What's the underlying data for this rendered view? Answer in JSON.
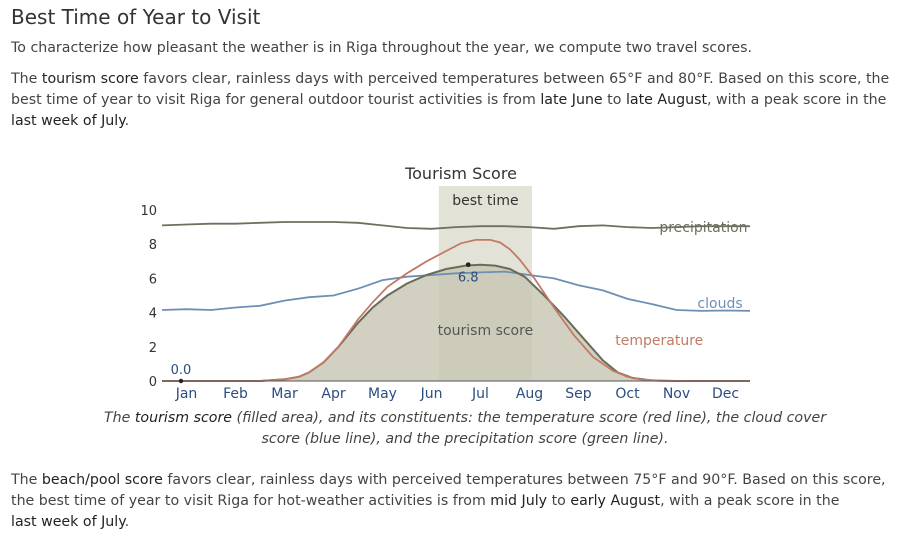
{
  "page": {
    "title": "Best Time of Year to Visit",
    "intro": "To characterize how pleasant the weather is in Riga throughout the year, we compute two travel scores.",
    "tourism_para": {
      "a": "The ",
      "b": "tourism score",
      "c": " favors clear, rainless days with perceived temperatures between 65°F and 80°F. Based on this score, the best time of year to visit Riga for general outdoor tourist activities is from ",
      "d": "late June",
      "e": " to ",
      "f": "late August",
      "g": ", with a peak score in the ",
      "h": "last week of July",
      "i": "."
    },
    "beach_para": {
      "a": "The ",
      "b": "beach/pool score",
      "c": " favors clear, rainless days with perceived temperatures between 75°F and 90°F. Based on this score, the best time of year to visit Riga for hot-weather activities is from ",
      "d": "mid July",
      "e": " to ",
      "f": "early August",
      "g": ", with a peak score in the ",
      "h": "last week of July",
      "i": "."
    },
    "caption": {
      "a": "The ",
      "b": "tourism score",
      "c": " (filled area), and its constituents: the temperature score (red line), the cloud cover score (blue line), and the precipitation score (green line)."
    }
  },
  "chart_data": {
    "type": "area",
    "title": "Tourism Score",
    "ylim": [
      0,
      10
    ],
    "yticks": [
      "0",
      "2",
      "4",
      "6",
      "8",
      "10"
    ],
    "xlim": [
      0,
      12
    ],
    "months": [
      "Jan",
      "Feb",
      "Mar",
      "Apr",
      "May",
      "Jun",
      "Jul",
      "Aug",
      "Sep",
      "Oct",
      "Nov",
      "Dec"
    ],
    "grid": false,
    "best_time": {
      "label": "best time",
      "start": 5.65,
      "end": 7.55
    },
    "min_label": {
      "text": "0.0",
      "x": 0.0,
      "y": 0.0
    },
    "max_label": {
      "text": "6.8",
      "x": 6.25,
      "y": 6.8
    },
    "series": [
      {
        "name": "tourism score",
        "color": "#6b6b5a",
        "fill": "#c9c8b6",
        "x": [
          0,
          1,
          2,
          2.5,
          2.8,
          3.0,
          3.3,
          3.6,
          4.0,
          4.3,
          4.6,
          5.0,
          5.4,
          5.8,
          6.2,
          6.5,
          6.8,
          7.1,
          7.4,
          7.8,
          8.2,
          8.6,
          9.0,
          9.3,
          9.6,
          10.0,
          10.5,
          11,
          12
        ],
        "y": [
          0,
          0,
          0,
          0.1,
          0.25,
          0.5,
          1.1,
          2.0,
          3.4,
          4.3,
          5.0,
          5.7,
          6.2,
          6.55,
          6.75,
          6.8,
          6.75,
          6.55,
          6.1,
          5.0,
          3.8,
          2.5,
          1.2,
          0.5,
          0.18,
          0.03,
          0,
          0,
          0
        ]
      },
      {
        "name": "temperature",
        "color": "#c17a66",
        "x": [
          0,
          1,
          2,
          2.5,
          2.8,
          3.0,
          3.3,
          3.6,
          4.0,
          4.3,
          4.6,
          5.0,
          5.4,
          5.8,
          6.1,
          6.4,
          6.7,
          6.9,
          7.1,
          7.3,
          7.6,
          8.0,
          8.4,
          8.8,
          9.2,
          9.5,
          9.8,
          10.2,
          11,
          12
        ],
        "y": [
          0,
          0,
          0,
          0.1,
          0.25,
          0.5,
          1.1,
          2.0,
          3.6,
          4.6,
          5.5,
          6.3,
          7.0,
          7.6,
          8.05,
          8.25,
          8.25,
          8.1,
          7.7,
          7.1,
          6.0,
          4.3,
          2.7,
          1.4,
          0.6,
          0.25,
          0.08,
          0.01,
          0,
          0
        ]
      },
      {
        "name": "clouds",
        "color": "#6e8fb4",
        "x": [
          0,
          0.5,
          1.0,
          1.5,
          2.0,
          2.5,
          3.0,
          3.5,
          4.0,
          4.5,
          5.0,
          5.5,
          6.0,
          6.5,
          7.0,
          7.5,
          8.0,
          8.5,
          9.0,
          9.5,
          10.0,
          10.5,
          11.0,
          11.5,
          12
        ],
        "y": [
          4.15,
          4.2,
          4.15,
          4.3,
          4.4,
          4.7,
          4.9,
          5.0,
          5.4,
          5.9,
          6.1,
          6.2,
          6.3,
          6.35,
          6.4,
          6.2,
          6.0,
          5.6,
          5.3,
          4.8,
          4.5,
          4.15,
          4.1,
          4.12,
          4.1
        ]
      },
      {
        "name": "precipitation",
        "color": "#6e6f5e",
        "x": [
          0,
          0.5,
          1.0,
          1.5,
          2.0,
          2.5,
          3.0,
          3.5,
          4.0,
          4.5,
          5.0,
          5.5,
          6.0,
          6.5,
          7.0,
          7.5,
          8.0,
          8.5,
          9.0,
          9.5,
          10.0,
          10.5,
          11.0,
          11.5,
          12
        ],
        "y": [
          9.1,
          9.15,
          9.2,
          9.2,
          9.25,
          9.3,
          9.3,
          9.3,
          9.25,
          9.1,
          8.95,
          8.9,
          9.0,
          9.05,
          9.05,
          9.0,
          8.9,
          9.05,
          9.1,
          9.0,
          8.95,
          9.0,
          9.05,
          9.05,
          9.05
        ]
      }
    ]
  }
}
